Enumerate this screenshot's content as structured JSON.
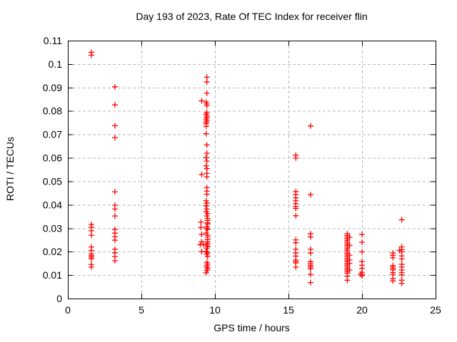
{
  "chart_data": {
    "type": "scatter",
    "title": "Day 193 of 2023, Rate Of TEC Index for receiver flin",
    "xlabel": "GPS time / hours",
    "ylabel": "ROTI / TECUs",
    "xlim": [
      0,
      25
    ],
    "ylim": [
      0,
      0.11
    ],
    "xtick_values": [
      0,
      5,
      10,
      15,
      20,
      25
    ],
    "xtick_labels": [
      "0",
      "5",
      "10",
      "15",
      "20",
      "25"
    ],
    "ytick_values": [
      0,
      0.01,
      0.02,
      0.03,
      0.04,
      0.05,
      0.06,
      0.07,
      0.08,
      0.09,
      0.1,
      0.11
    ],
    "ytick_labels": [
      "0",
      "0.01",
      "0.02",
      "0.03",
      "0.04",
      "0.05",
      "0.06",
      "0.07",
      "0.08",
      "0.09",
      "0.1",
      "0.11"
    ],
    "grid": true,
    "legend": false,
    "style": {
      "marker_shape": "plus",
      "marker_color": "#ff0000",
      "marker_size": 8,
      "grid_color": "#b9b9b9",
      "frame_color": "#000000",
      "background": "#ffffff"
    },
    "series": [
      {
        "name": "ROTI",
        "points": [
          [
            1.6,
            0.105
          ],
          [
            1.6,
            0.1038
          ],
          [
            1.6,
            0.0316
          ],
          [
            1.6,
            0.0304
          ],
          [
            1.6,
            0.0289
          ],
          [
            1.6,
            0.027
          ],
          [
            1.6,
            0.022
          ],
          [
            1.6,
            0.0205
          ],
          [
            1.6,
            0.019
          ],
          [
            1.6,
            0.0183
          ],
          [
            1.6,
            0.0177
          ],
          [
            1.6,
            0.017
          ],
          [
            1.6,
            0.0145
          ],
          [
            1.6,
            0.0134
          ],
          [
            3.2,
            0.0903
          ],
          [
            3.2,
            0.0826
          ],
          [
            3.2,
            0.0737
          ],
          [
            3.2,
            0.0686
          ],
          [
            3.2,
            0.0455
          ],
          [
            3.2,
            0.0398
          ],
          [
            3.2,
            0.0382
          ],
          [
            3.2,
            0.0352
          ],
          [
            3.2,
            0.0295
          ],
          [
            3.2,
            0.0279
          ],
          [
            3.2,
            0.0264
          ],
          [
            3.2,
            0.0249
          ],
          [
            3.2,
            0.021
          ],
          [
            3.2,
            0.0195
          ],
          [
            3.2,
            0.0179
          ],
          [
            3.2,
            0.0161
          ],
          [
            9.45,
            0.0944
          ],
          [
            9.45,
            0.0924
          ],
          [
            9.45,
            0.0876
          ],
          [
            9.1,
            0.0843
          ],
          [
            9.4,
            0.0838
          ],
          [
            9.45,
            0.083
          ],
          [
            9.45,
            0.0822
          ],
          [
            9.45,
            0.0793
          ],
          [
            9.4,
            0.0786
          ],
          [
            9.45,
            0.0779
          ],
          [
            9.45,
            0.0772
          ],
          [
            9.4,
            0.0765
          ],
          [
            9.45,
            0.0758
          ],
          [
            9.4,
            0.0752
          ],
          [
            9.4,
            0.0745
          ],
          [
            9.4,
            0.0734
          ],
          [
            9.4,
            0.0703
          ],
          [
            9.45,
            0.0655
          ],
          [
            9.45,
            0.062
          ],
          [
            9.4,
            0.0602
          ],
          [
            9.45,
            0.0586
          ],
          [
            9.4,
            0.0566
          ],
          [
            9.45,
            0.0554
          ],
          [
            9.45,
            0.0534
          ],
          [
            9.1,
            0.0529
          ],
          [
            9.45,
            0.0519
          ],
          [
            9.45,
            0.0473
          ],
          [
            9.45,
            0.0458
          ],
          [
            9.45,
            0.0445
          ],
          [
            9.4,
            0.0417
          ],
          [
            9.45,
            0.0407
          ],
          [
            9.4,
            0.0395
          ],
          [
            9.45,
            0.0382
          ],
          [
            9.4,
            0.037
          ],
          [
            9.5,
            0.0362
          ],
          [
            9.45,
            0.0352
          ],
          [
            9.5,
            0.0341
          ],
          [
            9.5,
            0.0333
          ],
          [
            9.05,
            0.0326
          ],
          [
            9.5,
            0.0323
          ],
          [
            9.5,
            0.0318
          ],
          [
            9.45,
            0.0307
          ],
          [
            9.05,
            0.0303
          ],
          [
            9.45,
            0.03
          ],
          [
            9.5,
            0.0295
          ],
          [
            9.4,
            0.0279
          ],
          [
            9.1,
            0.0273
          ],
          [
            9.5,
            0.027
          ],
          [
            9.5,
            0.0262
          ],
          [
            9.5,
            0.0252
          ],
          [
            9.1,
            0.0242
          ],
          [
            9.5,
            0.0242
          ],
          [
            9.5,
            0.0235
          ],
          [
            9.0,
            0.023
          ],
          [
            9.2,
            0.023
          ],
          [
            9.45,
            0.0228
          ],
          [
            9.5,
            0.0222
          ],
          [
            9.45,
            0.0215
          ],
          [
            9.1,
            0.02
          ],
          [
            9.4,
            0.0201
          ],
          [
            9.5,
            0.0195
          ],
          [
            9.45,
            0.0188
          ],
          [
            9.5,
            0.0179
          ],
          [
            9.45,
            0.0154
          ],
          [
            9.5,
            0.0147
          ],
          [
            9.45,
            0.014
          ],
          [
            9.45,
            0.0133
          ],
          [
            9.5,
            0.0127
          ],
          [
            9.45,
            0.012
          ],
          [
            9.4,
            0.011
          ],
          [
            16.5,
            0.0736
          ],
          [
            15.5,
            0.0611
          ],
          [
            15.5,
            0.0599
          ],
          [
            15.5,
            0.0456
          ],
          [
            15.5,
            0.0443
          ],
          [
            16.5,
            0.0443
          ],
          [
            15.5,
            0.0429
          ],
          [
            15.5,
            0.0417
          ],
          [
            15.5,
            0.0405
          ],
          [
            15.5,
            0.0392
          ],
          [
            15.5,
            0.0384
          ],
          [
            15.5,
            0.0353
          ],
          [
            16.5,
            0.0276
          ],
          [
            16.5,
            0.0263
          ],
          [
            15.5,
            0.025
          ],
          [
            15.5,
            0.0238
          ],
          [
            15.5,
            0.021
          ],
          [
            16.5,
            0.021
          ],
          [
            15.5,
            0.0194
          ],
          [
            16.5,
            0.0194
          ],
          [
            15.5,
            0.0181
          ],
          [
            15.5,
            0.0164
          ],
          [
            15.5,
            0.0158
          ],
          [
            15.5,
            0.0152
          ],
          [
            15.5,
            0.0134
          ],
          [
            16.5,
            0.0157
          ],
          [
            16.5,
            0.0148
          ],
          [
            16.5,
            0.0141
          ],
          [
            16.5,
            0.0134
          ],
          [
            16.5,
            0.0127
          ],
          [
            16.5,
            0.0103
          ],
          [
            16.5,
            0.0068
          ],
          [
            19,
            0.0276
          ],
          [
            19,
            0.0269
          ],
          [
            19.15,
            0.0262
          ],
          [
            19,
            0.0262
          ],
          [
            19,
            0.0255
          ],
          [
            19,
            0.0248
          ],
          [
            19,
            0.0241
          ],
          [
            19,
            0.0234
          ],
          [
            19.15,
            0.0227
          ],
          [
            19,
            0.0227
          ],
          [
            19,
            0.022
          ],
          [
            19,
            0.0213
          ],
          [
            19,
            0.0206
          ],
          [
            19,
            0.0199
          ],
          [
            19,
            0.0192
          ],
          [
            19.15,
            0.0185
          ],
          [
            19,
            0.0185
          ],
          [
            19,
            0.0178
          ],
          [
            19,
            0.0171
          ],
          [
            19.15,
            0.0164
          ],
          [
            19,
            0.0164
          ],
          [
            19,
            0.0157
          ],
          [
            19.15,
            0.015
          ],
          [
            19,
            0.015
          ],
          [
            19,
            0.0143
          ],
          [
            19,
            0.0136
          ],
          [
            19,
            0.0129
          ],
          [
            19.15,
            0.0122
          ],
          [
            19,
            0.0122
          ],
          [
            19,
            0.0115
          ],
          [
            19,
            0.0108
          ],
          [
            19,
            0.0095
          ],
          [
            19,
            0.0078
          ],
          [
            20,
            0.0273
          ],
          [
            20,
            0.024
          ],
          [
            20,
            0.0199
          ],
          [
            20,
            0.0158
          ],
          [
            20,
            0.0142
          ],
          [
            20,
            0.0129
          ],
          [
            20,
            0.0112
          ],
          [
            19.9,
            0.0104
          ],
          [
            20,
            0.0104
          ],
          [
            20,
            0.0097
          ],
          [
            22.7,
            0.0336
          ],
          [
            22.7,
            0.022
          ],
          [
            22.7,
            0.0209
          ],
          [
            22.55,
            0.0205
          ],
          [
            22.7,
            0.0199
          ],
          [
            22.1,
            0.0194
          ],
          [
            22.1,
            0.0184
          ],
          [
            22.7,
            0.0182
          ],
          [
            22.1,
            0.0174
          ],
          [
            22.7,
            0.0169
          ],
          [
            22.7,
            0.0146
          ],
          [
            22.1,
            0.0141
          ],
          [
            22.7,
            0.0134
          ],
          [
            22.1,
            0.0134
          ],
          [
            22.1,
            0.0128
          ],
          [
            22.7,
            0.0122
          ],
          [
            22.1,
            0.0122
          ],
          [
            22.1,
            0.0111
          ],
          [
            22.7,
            0.0111
          ],
          [
            22.1,
            0.0103
          ],
          [
            22.7,
            0.0101
          ],
          [
            22.1,
            0.0085
          ],
          [
            22.7,
            0.0078
          ],
          [
            22.1,
            0.0075
          ],
          [
            22.7,
            0.0065
          ]
        ]
      }
    ]
  }
}
